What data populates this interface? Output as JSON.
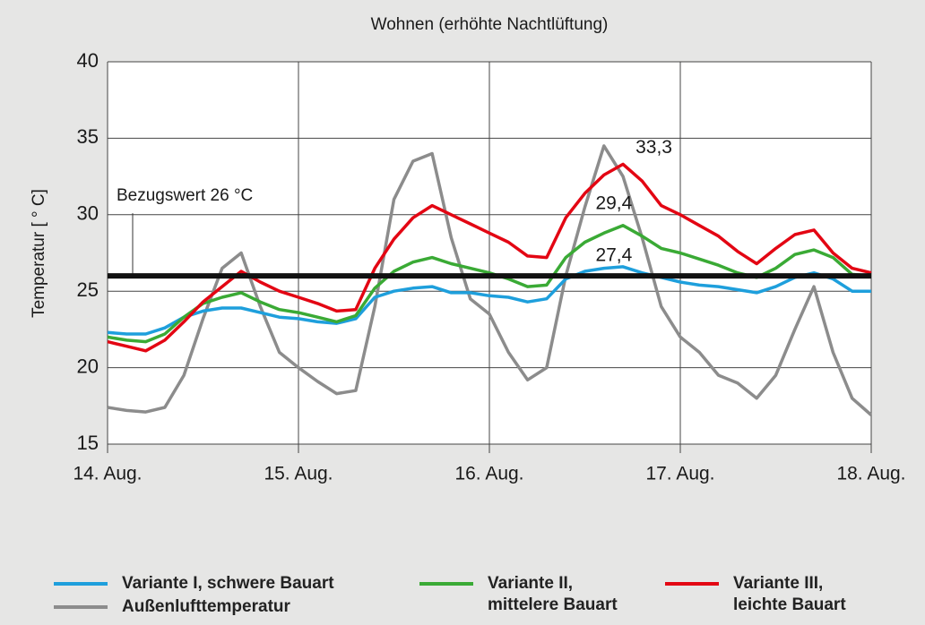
{
  "chart_data": {
    "type": "line",
    "title": "Wohnen (erhöhte Nachtlüftung)",
    "y_label": "Temperatur [ ° C]",
    "x": [
      0,
      0.1,
      0.2,
      0.3,
      0.4,
      0.5,
      0.6,
      0.7,
      0.8,
      0.9,
      1.0,
      1.1,
      1.2,
      1.3,
      1.4,
      1.5,
      1.6,
      1.7,
      1.8,
      1.9,
      2.0,
      2.1,
      2.2,
      2.3,
      2.4,
      2.5,
      2.6,
      2.7,
      2.8,
      2.9,
      3.0,
      3.1,
      3.2,
      3.3,
      3.4,
      3.5,
      3.6,
      3.7,
      3.8,
      3.9,
      4.0
    ],
    "xlim": [
      0,
      4
    ],
    "xticks": [
      {
        "value": 0,
        "label": "14. Aug."
      },
      {
        "value": 1,
        "label": "15. Aug."
      },
      {
        "value": 2,
        "label": "16. Aug."
      },
      {
        "value": 3,
        "label": "17. Aug."
      },
      {
        "value": 4,
        "label": "18. Aug."
      }
    ],
    "ylim": [
      15,
      40
    ],
    "yticks": [
      15,
      20,
      25,
      30,
      35,
      40
    ],
    "grid": true,
    "series": [
      {
        "name": "Variante I, schwere Bauart",
        "color": "#1e9fdc",
        "values": [
          22.3,
          22.2,
          22.2,
          22.6,
          23.3,
          23.7,
          23.9,
          23.9,
          23.6,
          23.3,
          23.2,
          23.0,
          22.9,
          23.2,
          24.6,
          25.0,
          25.2,
          25.3,
          24.9,
          24.9,
          24.7,
          24.6,
          24.3,
          24.5,
          25.8,
          26.3,
          26.5,
          26.6,
          26.2,
          25.9,
          25.6,
          25.4,
          25.3,
          25.1,
          24.9,
          25.3,
          25.9,
          26.2,
          25.8,
          25.0,
          25.0
        ]
      },
      {
        "name": "Variante II,\nmittelere Bauart",
        "color": "#3aaa35",
        "values": [
          22.0,
          21.8,
          21.7,
          22.2,
          23.3,
          24.2,
          24.6,
          24.9,
          24.3,
          23.8,
          23.6,
          23.3,
          23.0,
          23.4,
          25.2,
          26.3,
          26.9,
          27.2,
          26.8,
          26.5,
          26.2,
          25.8,
          25.3,
          25.4,
          27.2,
          28.2,
          28.8,
          29.3,
          28.6,
          27.8,
          27.5,
          27.1,
          26.7,
          26.2,
          25.9,
          26.5,
          27.4,
          27.7,
          27.2,
          26.1,
          26.0
        ]
      },
      {
        "name": "Variante III,\nleichte Bauart",
        "color": "#e30613",
        "values": [
          21.7,
          21.4,
          21.1,
          21.8,
          23.0,
          24.3,
          25.3,
          26.3,
          25.6,
          25.0,
          24.6,
          24.2,
          23.7,
          23.8,
          26.5,
          28.4,
          29.8,
          30.6,
          30.0,
          29.4,
          28.8,
          28.2,
          27.3,
          27.2,
          29.8,
          31.4,
          32.6,
          33.3,
          32.2,
          30.6,
          30.0,
          29.3,
          28.6,
          27.6,
          26.8,
          27.8,
          28.7,
          29.0,
          27.5,
          26.5,
          26.2
        ]
      },
      {
        "name": "Außenlufttemperatur",
        "color": "#8c8c8c",
        "values": [
          17.4,
          17.2,
          17.1,
          17.4,
          19.5,
          23.2,
          26.5,
          27.5,
          24.0,
          21.0,
          20.0,
          19.1,
          18.3,
          18.5,
          24.0,
          31.0,
          33.5,
          34.0,
          28.5,
          24.5,
          23.5,
          21.0,
          19.2,
          20.0,
          26.0,
          30.5,
          34.5,
          32.5,
          28.5,
          24.0,
          22.0,
          21.0,
          19.5,
          19.0,
          18.0,
          19.5,
          22.5,
          25.3,
          21.0,
          18.0,
          16.9
        ]
      }
    ],
    "reference": {
      "value": 26,
      "label": "Bezugswert 26 °C"
    },
    "annotations": [
      {
        "label": "33,3",
        "value": 33.3,
        "x": 2.7
      },
      {
        "label": "29,4",
        "value": 29.4,
        "x": 2.65
      },
      {
        "label": "27,4",
        "value": 27.4,
        "x": 2.65
      }
    ]
  }
}
